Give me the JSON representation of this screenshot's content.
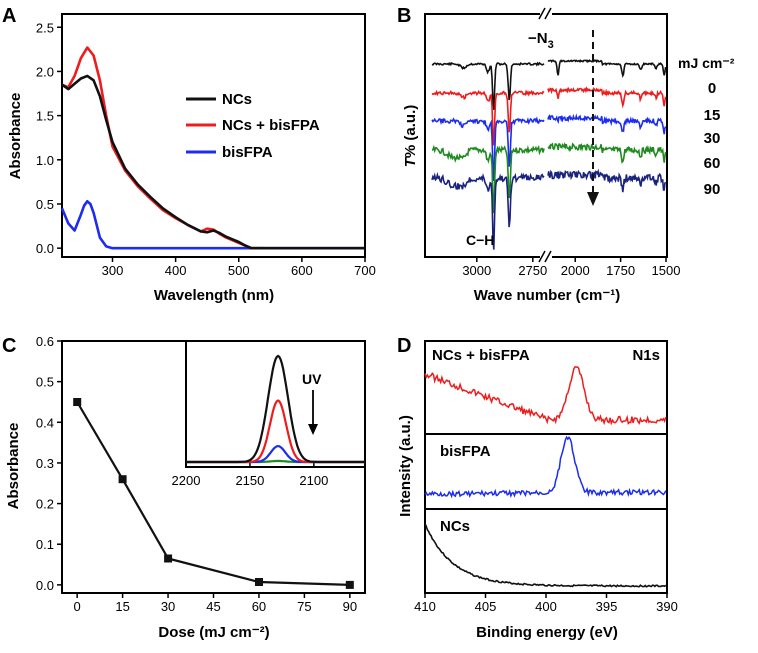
{
  "colors": {
    "black": "#111111",
    "red": "#ee1c1c",
    "blue": "#1c2cf0",
    "green": "#1f8a1f",
    "navy": "#1a237e"
  },
  "chart_data": [
    {
      "id": "A",
      "panel_label": "A",
      "type": "line",
      "xlabel": "Wavelength (nm)",
      "ylabel": "Absorbance",
      "xlim": [
        220,
        700
      ],
      "ylim": [
        -0.1,
        2.65
      ],
      "xticks": [
        "300",
        "400",
        "500",
        "600",
        "700"
      ],
      "yticks": [
        "0.0",
        "0.5",
        "1.0",
        "1.5",
        "2.0",
        "2.5"
      ],
      "legend": [
        "NCs",
        "NCs + bisFPA",
        "bisFPA"
      ],
      "series": [
        {
          "name": "NCs",
          "color": "black",
          "x": [
            220,
            230,
            240,
            250,
            260,
            270,
            280,
            290,
            300,
            320,
            340,
            360,
            380,
            400,
            420,
            440,
            450,
            460,
            470,
            480,
            490,
            500,
            510,
            520,
            540,
            560,
            600,
            650,
            700
          ],
          "y": [
            1.85,
            1.8,
            1.86,
            1.92,
            1.95,
            1.9,
            1.72,
            1.45,
            1.2,
            0.9,
            0.72,
            0.58,
            0.45,
            0.35,
            0.26,
            0.19,
            0.18,
            0.2,
            0.17,
            0.13,
            0.1,
            0.07,
            0.03,
            0.0,
            0.0,
            0.0,
            0.0,
            0.0,
            0.0
          ]
        },
        {
          "name": "NCs + bisFPA",
          "color": "red",
          "x": [
            220,
            230,
            240,
            250,
            260,
            270,
            280,
            290,
            300,
            320,
            340,
            360,
            380,
            400,
            420,
            440,
            450,
            460,
            470,
            480,
            490,
            500,
            510,
            520,
            540
          ],
          "y": [
            1.85,
            1.82,
            1.95,
            2.15,
            2.27,
            2.18,
            1.9,
            1.5,
            1.15,
            0.88,
            0.7,
            0.56,
            0.43,
            0.34,
            0.26,
            0.19,
            0.22,
            0.21,
            0.16,
            0.12,
            0.09,
            0.06,
            0.03,
            0.0,
            0.0
          ]
        },
        {
          "name": "bisFPA",
          "color": "blue",
          "x": [
            220,
            230,
            240,
            250,
            255,
            260,
            265,
            270,
            280,
            290,
            300,
            320,
            350,
            400,
            500,
            700
          ],
          "y": [
            0.45,
            0.28,
            0.2,
            0.38,
            0.48,
            0.53,
            0.5,
            0.4,
            0.12,
            0.02,
            0.0,
            0.0,
            0.0,
            0.0,
            0.0,
            0.0
          ]
        }
      ]
    },
    {
      "id": "B",
      "panel_label": "B",
      "type": "line",
      "xlabel": "Wave number (cm⁻¹)",
      "ylabel_italic": "T",
      "ylabel_rest": "% (a.u.)",
      "x_segments": [
        [
          3200,
          2700
        ],
        [
          2150,
          1500
        ]
      ],
      "xticks": [
        "3000",
        "2750",
        "2000",
        "1750",
        "1500"
      ],
      "annotations": [
        "−N",
        "3",
        "C−H"
      ],
      "series_header": "mJ cm⁻²",
      "series": [
        {
          "name": "0",
          "color": "black",
          "offset": 0
        },
        {
          "name": "15",
          "color": "red",
          "offset": 1
        },
        {
          "name": "30",
          "color": "blue",
          "offset": 2
        },
        {
          "name": "60",
          "color": "green",
          "offset": 3
        },
        {
          "name": "90",
          "color": "navy",
          "offset": 4
        }
      ]
    },
    {
      "id": "C",
      "panel_label": "C",
      "type": "line",
      "xlabel": "Dose (mJ cm⁻²)",
      "ylabel": "Absorbance",
      "xlim": [
        -5,
        95
      ],
      "ylim": [
        -0.02,
        0.6
      ],
      "xticks": [
        "0",
        "15",
        "30",
        "45",
        "60",
        "75",
        "90"
      ],
      "yticks": [
        "0.0",
        "0.1",
        "0.2",
        "0.3",
        "0.4",
        "0.5",
        "0.6"
      ],
      "series": [
        {
          "name": "Absorbance",
          "x": [
            0,
            15,
            30,
            60,
            90
          ],
          "y": [
            0.45,
            0.26,
            0.065,
            0.007,
            0.0
          ]
        }
      ],
      "inset": {
        "type": "line",
        "xlim": [
          2200,
          2060
        ],
        "xticks": [
          "2200",
          "2150",
          "2100"
        ],
        "annotation": "UV",
        "series": [
          {
            "name": "0",
            "color": "black",
            "peak": 2128,
            "height": 1.0,
            "width": 11
          },
          {
            "name": "15",
            "color": "red",
            "peak": 2128,
            "height": 0.58,
            "width": 9
          },
          {
            "name": "30",
            "color": "blue",
            "peak": 2128,
            "height": 0.15,
            "width": 8
          },
          {
            "name": "60",
            "color": "green",
            "peak": 2128,
            "height": 0.01,
            "width": 8
          }
        ]
      }
    },
    {
      "id": "D",
      "panel_label": "D",
      "type": "line",
      "xlabel": "Binding energy (eV)",
      "ylabel": "Intensity (a.u.)",
      "xlim": [
        410,
        390
      ],
      "xticks": [
        "410",
        "405",
        "400",
        "395",
        "390"
      ],
      "subpanels": [
        {
          "label": "NCs + bisFPA",
          "corner": "N1s",
          "color": "red",
          "peak": 397.5
        },
        {
          "label": "bisFPA",
          "color": "blue",
          "peak": 398.2
        },
        {
          "label": "NCs",
          "color": "black"
        }
      ]
    }
  ]
}
